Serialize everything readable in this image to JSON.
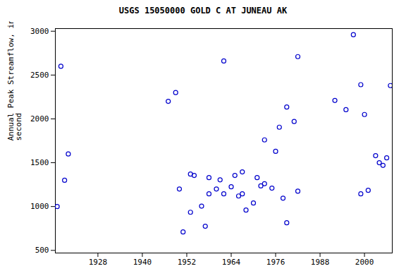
{
  "chart_data": {
    "type": "scatter",
    "title": "USGS 15050000 GOLD C AT JUNEAU AK",
    "y_label": "Annual Peak Streamflow, in cubic feet per second",
    "x": [
      1917,
      1918,
      1919,
      1920,
      1947,
      1949,
      1950,
      1951,
      1953,
      1953,
      1954,
      1956,
      1957,
      1958,
      1958,
      1960,
      1961,
      1962,
      1962,
      1964,
      1965,
      1966,
      1967,
      1967,
      1968,
      1970,
      1971,
      1972,
      1973,
      1973,
      1975,
      1976,
      1977,
      1978,
      1979,
      1979,
      1981,
      1982,
      1982,
      1992,
      1995,
      1997,
      1999,
      1999,
      2000,
      2001,
      2003,
      2004,
      2005,
      2006,
      2007
    ],
    "values": [
      1000,
      2600,
      1300,
      1600,
      2200,
      2300,
      1200,
      710,
      935,
      1370,
      1355,
      1005,
      775,
      1330,
      1145,
      1200,
      1305,
      2660,
      1145,
      1225,
      1355,
      1120,
      1395,
      1145,
      960,
      1040,
      1330,
      1235,
      1760,
      1260,
      1210,
      1630,
      1905,
      1095,
      815,
      2135,
      1970,
      2710,
      1175,
      2210,
      2105,
      2960,
      2390,
      1145,
      2050,
      1185,
      1580,
      1500,
      1470,
      1555,
      2380
    ],
    "color": "#0000cc",
    "marker": "open_circle",
    "xlim": [
      1916.5,
      2007.5
    ],
    "xticks": [
      1928,
      1940,
      1952,
      1964,
      1976,
      1988,
      2000
    ],
    "ylim": [
      470,
      3030
    ],
    "yticks": [
      500,
      1000,
      1500,
      2000,
      2500,
      3000
    ],
    "grid": false
  }
}
